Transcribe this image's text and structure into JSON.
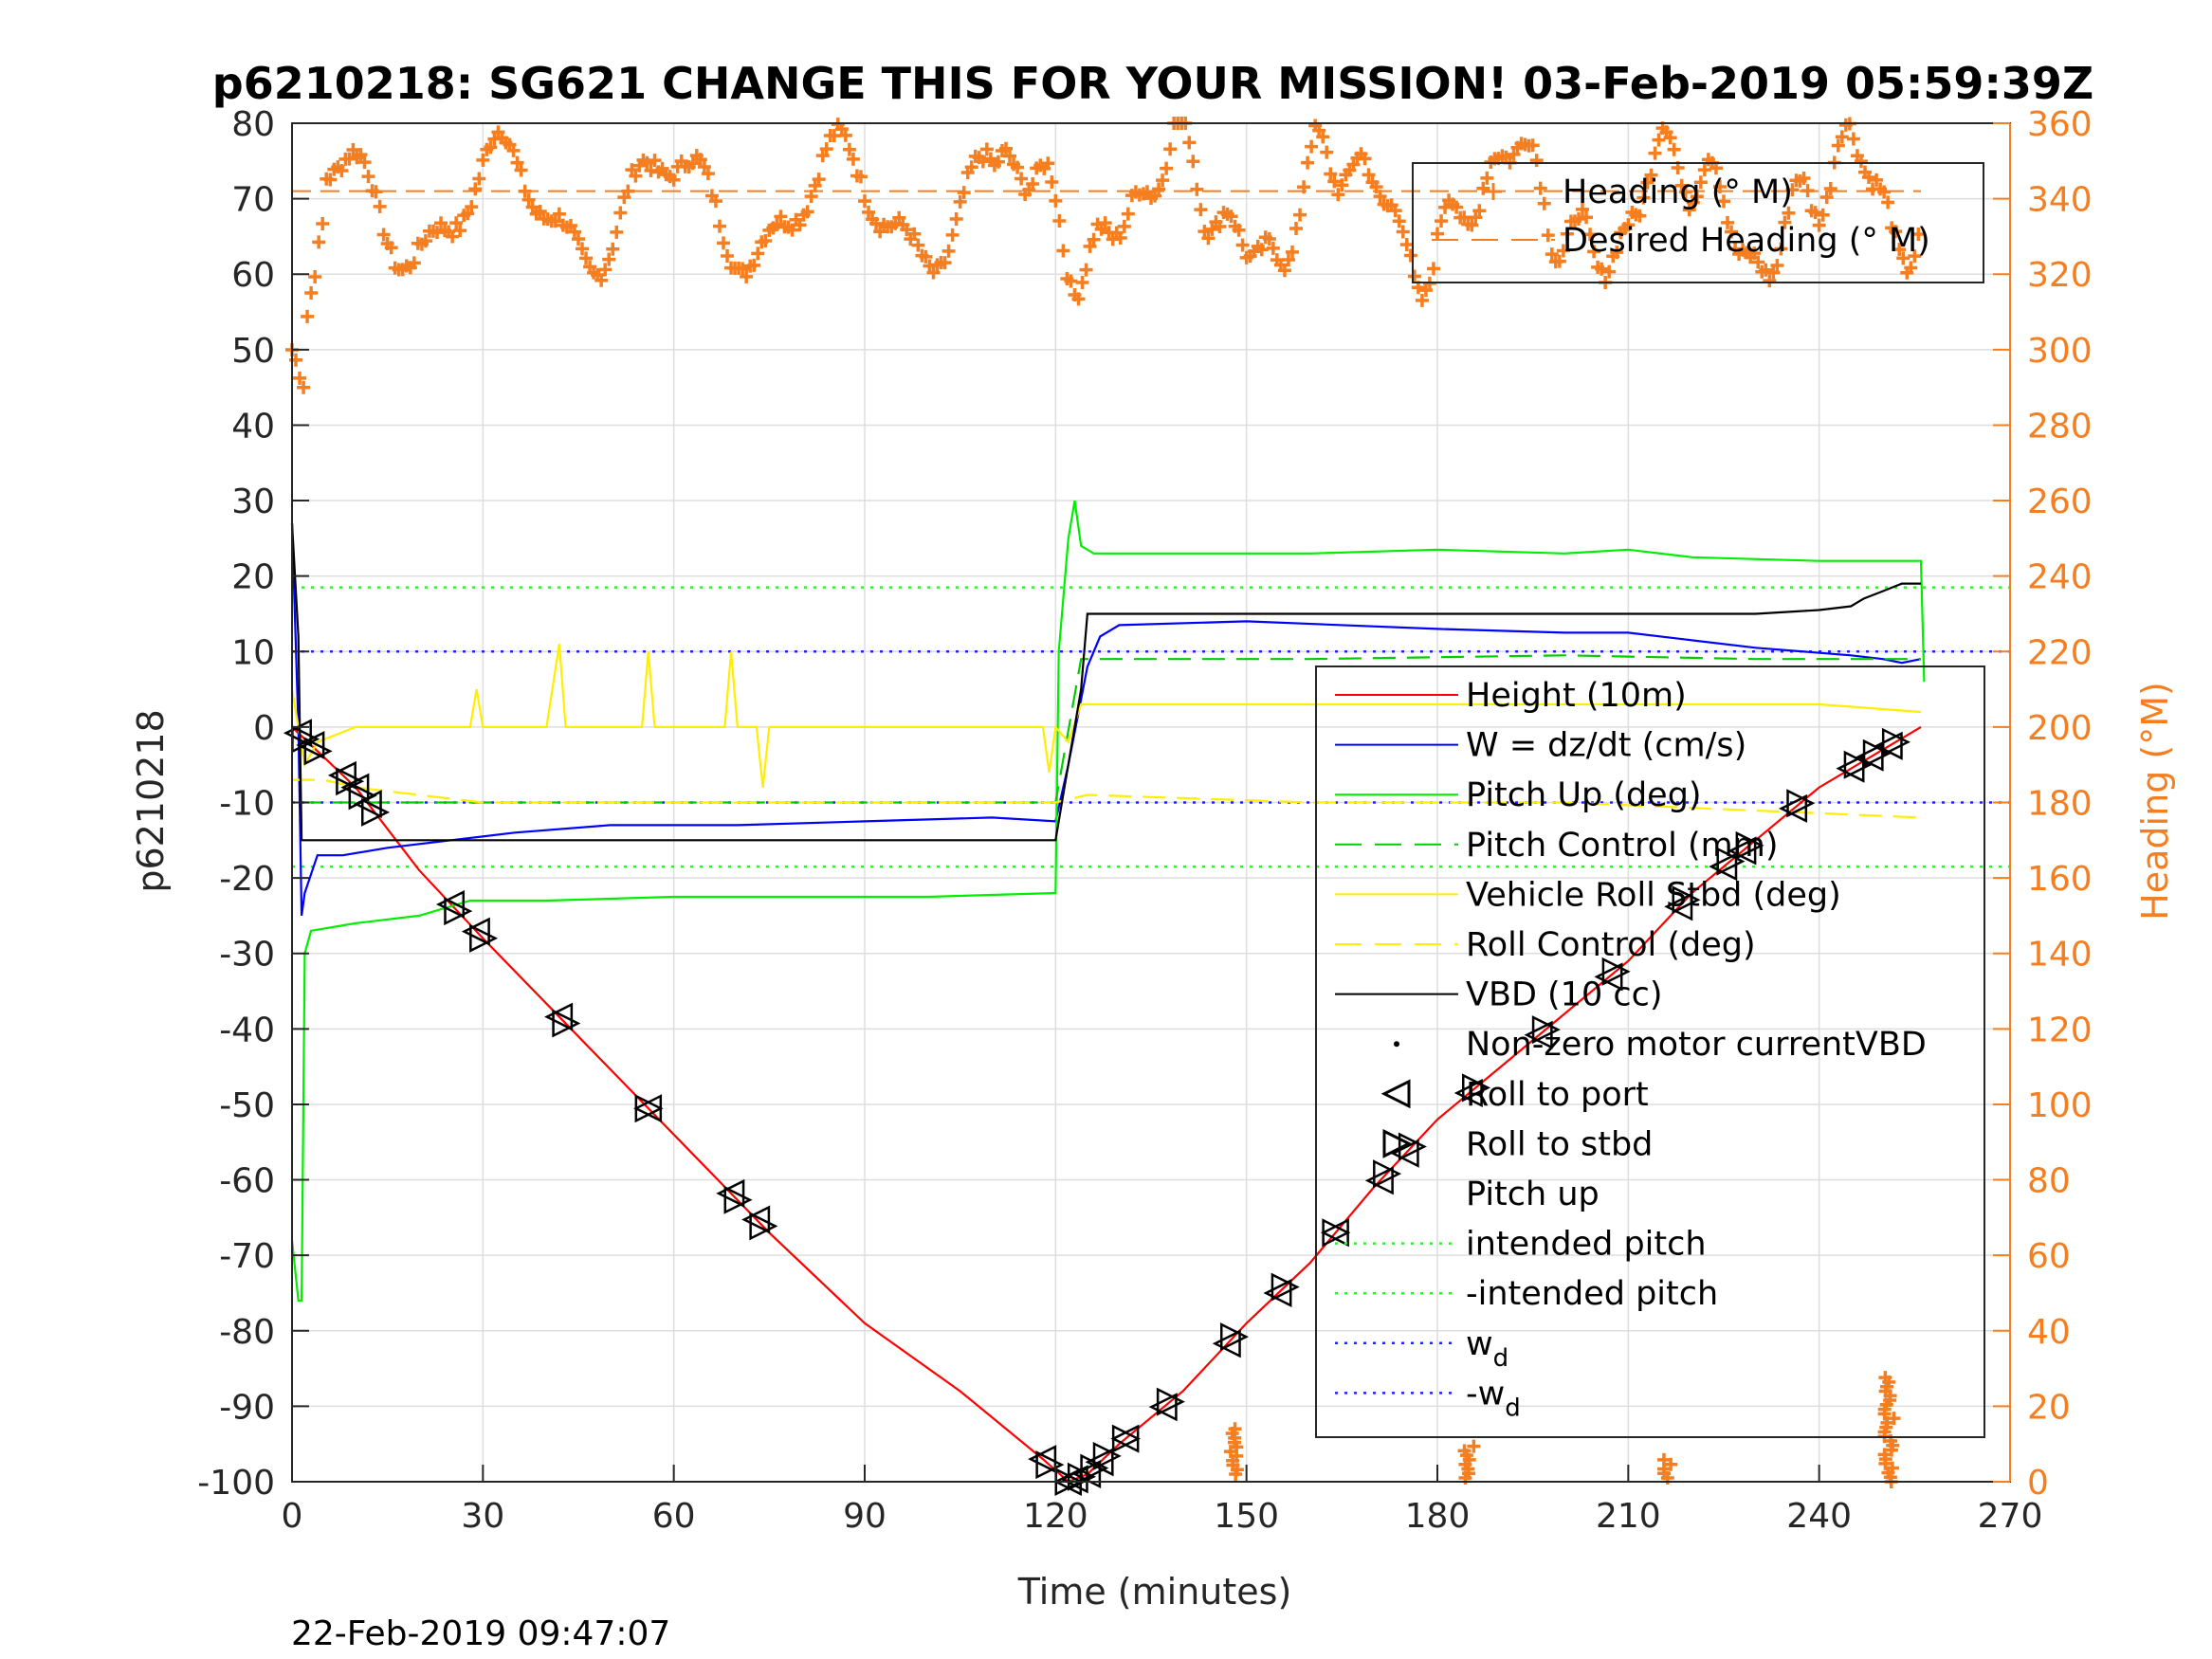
{
  "chart_data": {
    "type": "line",
    "title": "p6210218: SG621 CHANGE THIS FOR YOUR MISSION! 03-Feb-2019 05:59:39Z",
    "xlabel": "Time (minutes)",
    "ylabel": "p6210218",
    "y2label": "Heading (°M)",
    "timestamp": "22-Feb-2019 09:47:07",
    "xlim": [
      0,
      270
    ],
    "ylim": [
      -100,
      80
    ],
    "y2lim": [
      0,
      360
    ],
    "xticks": [
      0,
      30,
      60,
      90,
      120,
      150,
      180,
      210,
      240,
      270
    ],
    "yticks": [
      -100,
      -90,
      -80,
      -70,
      -60,
      -50,
      -40,
      -30,
      -20,
      -10,
      0,
      10,
      20,
      30,
      40,
      50,
      60,
      70,
      80
    ],
    "y2ticks": [
      0,
      20,
      40,
      60,
      80,
      100,
      120,
      140,
      160,
      180,
      200,
      220,
      240,
      260,
      280,
      300,
      320,
      340,
      360
    ],
    "grid": true,
    "legend_top": [
      {
        "label": "Heading (° M)",
        "style": "orange-plus"
      },
      {
        "label": "Desired Heading (° M)",
        "style": "orange-dash"
      }
    ],
    "legend_main": [
      {
        "label": "Height (10m)",
        "style": "red-solid"
      },
      {
        "label": "W = dz/dt (cm/s)",
        "style": "blue-solid"
      },
      {
        "label": "Pitch Up (deg)",
        "style": "green-solid"
      },
      {
        "label": "Pitch Control (mm)",
        "style": "green-dash"
      },
      {
        "label": "Vehicle Roll Stbd (deg)",
        "style": "yellow-solid"
      },
      {
        "label": "Roll Control (deg)",
        "style": "yellow-dash"
      },
      {
        "label": "VBD (10 cc)",
        "style": "black-solid"
      },
      {
        "label": "Non-zero motor currentVBD",
        "style": "black-dot"
      },
      {
        "label": "Roll to port",
        "style": "tri-left"
      },
      {
        "label": "Roll to stbd",
        "style": "tri-right"
      },
      {
        "label": "Pitch up",
        "style": "tri-up"
      },
      {
        "label": "intended pitch",
        "style": "green-dotted"
      },
      {
        "label": "-intended pitch",
        "style": "green-dotted"
      },
      {
        "label": "w",
        "sub": "d",
        "style": "blue-dotted"
      },
      {
        "label": "-w",
        "sub": "d",
        "style": "blue-dotted"
      }
    ],
    "series": [
      {
        "name": "Height (10m)",
        "color": "#ff0000",
        "points": [
          [
            0,
            0
          ],
          [
            5,
            -4
          ],
          [
            10,
            -8
          ],
          [
            20,
            -19
          ],
          [
            30,
            -28
          ],
          [
            45,
            -41
          ],
          [
            60,
            -54
          ],
          [
            75,
            -67
          ],
          [
            90,
            -79
          ],
          [
            105,
            -88
          ],
          [
            118,
            -97
          ],
          [
            122,
            -100
          ],
          [
            125,
            -99
          ],
          [
            130,
            -95
          ],
          [
            140,
            -88
          ],
          [
            150,
            -79
          ],
          [
            160,
            -71
          ],
          [
            170,
            -61
          ],
          [
            180,
            -52
          ],
          [
            190,
            -45
          ],
          [
            200,
            -38
          ],
          [
            210,
            -31
          ],
          [
            220,
            -22
          ],
          [
            230,
            -15
          ],
          [
            240,
            -8
          ],
          [
            250,
            -3
          ],
          [
            256,
            0
          ]
        ]
      },
      {
        "name": "W = dz/dt (cm/s)",
        "color": "#0000ff",
        "points": [
          [
            0,
            27
          ],
          [
            1,
            0
          ],
          [
            1.5,
            -25
          ],
          [
            2,
            -22
          ],
          [
            4,
            -17
          ],
          [
            8,
            -17
          ],
          [
            15,
            -16
          ],
          [
            25,
            -15
          ],
          [
            35,
            -14
          ],
          [
            50,
            -13
          ],
          [
            70,
            -13
          ],
          [
            90,
            -12.5
          ],
          [
            110,
            -12
          ],
          [
            120,
            -12.5
          ],
          [
            122,
            -5
          ],
          [
            125,
            8
          ],
          [
            127,
            12
          ],
          [
            130,
            13.5
          ],
          [
            150,
            14
          ],
          [
            180,
            13
          ],
          [
            200,
            12.5
          ],
          [
            210,
            12.5
          ],
          [
            230,
            10.5
          ],
          [
            245,
            9.5
          ],
          [
            250,
            9
          ],
          [
            253,
            8.5
          ],
          [
            256,
            9
          ]
        ]
      },
      {
        "name": "Pitch Up (deg)",
        "color": "#00ee00",
        "points": [
          [
            0,
            -68
          ],
          [
            1,
            -76
          ],
          [
            1.5,
            -76
          ],
          [
            2,
            -30
          ],
          [
            3,
            -27
          ],
          [
            10,
            -26
          ],
          [
            20,
            -25
          ],
          [
            28,
            -23
          ],
          [
            40,
            -23
          ],
          [
            60,
            -22.5
          ],
          [
            80,
            -22.5
          ],
          [
            100,
            -22.5
          ],
          [
            120,
            -22
          ],
          [
            120.5,
            10
          ],
          [
            122,
            25
          ],
          [
            123,
            30
          ],
          [
            124,
            24
          ],
          [
            126,
            23
          ],
          [
            140,
            23
          ],
          [
            160,
            23
          ],
          [
            180,
            23.5
          ],
          [
            200,
            23
          ],
          [
            210,
            23.5
          ],
          [
            220,
            22.5
          ],
          [
            240,
            22
          ],
          [
            250,
            22
          ],
          [
            256,
            22
          ],
          [
            256.5,
            6
          ]
        ]
      },
      {
        "name": "Pitch Control (mm)",
        "color": "#00cc00",
        "dash": true,
        "points": [
          [
            1,
            -10
          ],
          [
            10,
            -10
          ],
          [
            60,
            -10
          ],
          [
            120,
            -10
          ],
          [
            124,
            9
          ],
          [
            160,
            9
          ],
          [
            200,
            9.5
          ],
          [
            230,
            9
          ],
          [
            256,
            9
          ]
        ]
      },
      {
        "name": "Vehicle Roll Stbd (deg)",
        "color": "#ffee00",
        "points": [
          [
            0,
            5
          ],
          [
            2,
            -5
          ],
          [
            4,
            -2
          ],
          [
            10,
            0
          ],
          [
            20,
            0
          ],
          [
            28,
            0
          ],
          [
            29,
            5
          ],
          [
            30,
            0
          ],
          [
            40,
            0
          ],
          [
            42,
            11
          ],
          [
            43,
            0
          ],
          [
            55,
            0
          ],
          [
            56,
            10
          ],
          [
            57,
            0
          ],
          [
            68,
            0
          ],
          [
            69,
            10
          ],
          [
            70,
            0
          ],
          [
            73,
            0
          ],
          [
            74,
            -8
          ],
          [
            75,
            0
          ],
          [
            100,
            0
          ],
          [
            118,
            0
          ],
          [
            119,
            -6
          ],
          [
            120,
            0
          ],
          [
            122,
            -2
          ],
          [
            124,
            3
          ],
          [
            140,
            3
          ],
          [
            150,
            3
          ],
          [
            160,
            3
          ],
          [
            180,
            3
          ],
          [
            200,
            3
          ],
          [
            220,
            3
          ],
          [
            240,
            3
          ],
          [
            256,
            2
          ]
        ]
      },
      {
        "name": "Roll Control (deg)",
        "color": "#ffee00",
        "dash": true,
        "points": [
          [
            0,
            -7
          ],
          [
            5,
            -7
          ],
          [
            10,
            -8
          ],
          [
            30,
            -10
          ],
          [
            60,
            -10
          ],
          [
            120,
            -10
          ],
          [
            125,
            -9
          ],
          [
            160,
            -10
          ],
          [
            200,
            -10
          ],
          [
            256,
            -12
          ]
        ]
      },
      {
        "name": "VBD (10 cc)",
        "color": "#000000",
        "points": [
          [
            0,
            27
          ],
          [
            1,
            12
          ],
          [
            1.5,
            -15
          ],
          [
            10,
            -15
          ],
          [
            60,
            -15
          ],
          [
            120,
            -15
          ],
          [
            121,
            -10
          ],
          [
            124,
            5
          ],
          [
            125,
            15
          ],
          [
            150,
            15
          ],
          [
            200,
            15
          ],
          [
            230,
            15
          ],
          [
            240,
            15.5
          ],
          [
            245,
            16
          ],
          [
            247,
            17
          ],
          [
            250,
            18
          ],
          [
            253,
            19
          ],
          [
            256,
            19
          ]
        ]
      }
    ],
    "heading_desired": 342,
    "reference_lines": {
      "intended_pitch": 18.5,
      "wd": 10
    },
    "roll_to_port_x": [
      1,
      3,
      8,
      10,
      12,
      25,
      29,
      42,
      56,
      69,
      73,
      118,
      122,
      123,
      125,
      127,
      131,
      137,
      147,
      155,
      164,
      171,
      175,
      185,
      196,
      207,
      218,
      225,
      228,
      236,
      245,
      248,
      251
    ],
    "roll_to_stbd_x": [
      2,
      4,
      9,
      11,
      13,
      26,
      30,
      43,
      56,
      70,
      74,
      119,
      122,
      124,
      126,
      128,
      131,
      138,
      148,
      156,
      164,
      172,
      176,
      186,
      197,
      208,
      219,
      226,
      229,
      237,
      246,
      249,
      252
    ]
  }
}
